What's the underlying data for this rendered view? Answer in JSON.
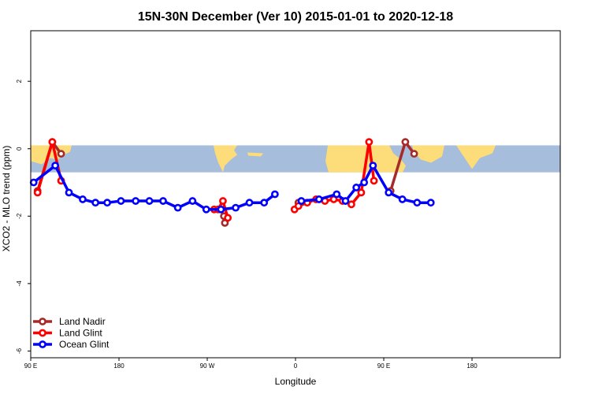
{
  "chart_data": {
    "type": "line",
    "title": "15N-30N December (Ver 10)   2015-01-01 to 2020-12-18",
    "xlabel": "Longitude",
    "ylabel": "XCO2 - MLO trend (ppm)",
    "xlim": [
      90,
      450
    ],
    "ylim": [
      -6.2,
      3.5
    ],
    "x_ticks": [
      {
        "value": 90,
        "label": "90 E"
      },
      {
        "value": 180,
        "label": "180"
      },
      {
        "value": 270,
        "label": "90 W"
      },
      {
        "value": 360,
        "label": "0"
      },
      {
        "value": 450,
        "label": "90 E"
      },
      {
        "value": 540,
        "label": "180"
      }
    ],
    "y_ticks": [
      {
        "value": 2,
        "label": "2"
      },
      {
        "value": 0,
        "label": "0"
      },
      {
        "value": -2,
        "label": "-2"
      },
      {
        "value": -4,
        "label": "-4"
      },
      {
        "value": -6,
        "label": "-6"
      }
    ],
    "map_band": {
      "ymin": -0.7,
      "ymax": 0.1,
      "ocean_color": "#a6bddb",
      "land_color": "#fddc7a"
    },
    "series": [
      {
        "name": "Land Nadir",
        "color": "#a52a2a",
        "segments": [
          [
            [
              97,
              -1.25
            ],
            [
              112,
              0.2
            ],
            [
              121,
              -0.15
            ]
          ],
          [
            [
              287,
              -2.0
            ],
            [
              288,
              -2.2
            ]
          ],
          [
            [
              363,
              -1.6
            ]
          ],
          [
            [
              457,
              -1.25
            ],
            [
              472,
              0.2
            ],
            [
              481,
              -0.15
            ]
          ]
        ]
      },
      {
        "name": "Land Glint",
        "color": "#ff0000",
        "segments": [
          [
            [
              97,
              -1.3
            ],
            [
              112,
              0.2
            ],
            [
              121,
              -0.95
            ]
          ],
          [
            [
              277,
              -1.8
            ],
            [
              281,
              -1.8
            ],
            [
              286,
              -1.55
            ],
            [
              291,
              -2.05
            ]
          ],
          [
            [
              359,
              -1.8
            ],
            [
              363,
              -1.7
            ],
            [
              372,
              -1.6
            ],
            [
              381,
              -1.5
            ],
            [
              390,
              -1.55
            ],
            [
              399,
              -1.5
            ],
            [
              408,
              -1.55
            ],
            [
              417,
              -1.65
            ],
            [
              427,
              -1.3
            ],
            [
              435,
              0.2
            ],
            [
              440,
              -0.95
            ]
          ]
        ]
      },
      {
        "name": "Ocean Glint",
        "color": "#0000ff",
        "segments": [
          [
            [
              93,
              -1.0
            ],
            [
              115,
              -0.5
            ],
            [
              129,
              -1.3
            ],
            [
              143,
              -1.5
            ],
            [
              156,
              -1.6
            ],
            [
              168,
              -1.6
            ],
            [
              182,
              -1.55
            ],
            [
              197,
              -1.55
            ],
            [
              211,
              -1.55
            ],
            [
              225,
              -1.55
            ],
            [
              240,
              -1.75
            ],
            [
              255,
              -1.55
            ],
            [
              269,
              -1.8
            ],
            [
              284,
              -1.8
            ],
            [
              299,
              -1.75
            ],
            [
              313,
              -1.6
            ],
            [
              328,
              -1.6
            ],
            [
              339,
              -1.35
            ]
          ],
          [
            [
              366,
              -1.55
            ],
            [
              384,
              -1.5
            ],
            [
              402,
              -1.35
            ],
            [
              411,
              -1.55
            ],
            [
              422,
              -1.15
            ],
            [
              430,
              -1.0
            ],
            [
              439,
              -0.5
            ],
            [
              455,
              -1.3
            ],
            [
              469,
              -1.5
            ],
            [
              484,
              -1.6
            ],
            [
              498,
              -1.6
            ]
          ]
        ]
      }
    ],
    "legend": {
      "position": "bottom-left"
    }
  }
}
